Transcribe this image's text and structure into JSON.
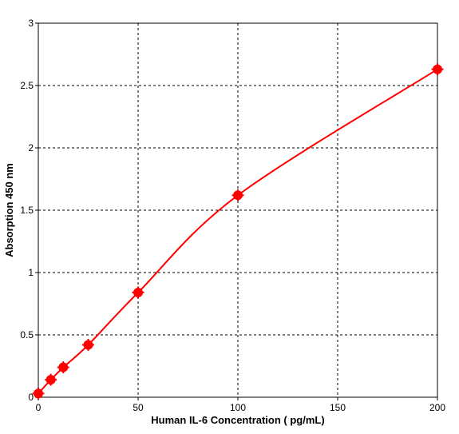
{
  "chart_data": {
    "type": "scatter",
    "title": "",
    "xlabel": "Human IL-6 Concentration ( pg/mL)",
    "ylabel": "Absorption 450 nm",
    "xlim": [
      0,
      200
    ],
    "ylim": [
      0,
      3
    ],
    "x_ticks": [
      "0",
      "50",
      "100",
      "150",
      "200"
    ],
    "y_ticks": [
      "0",
      "0.5",
      "1",
      "1.5",
      "2",
      "2.5",
      "3"
    ],
    "grid": true,
    "legend": "none",
    "series": [
      {
        "x": [
          0,
          6.25,
          12.5,
          25,
          50,
          100,
          200
        ],
        "y": [
          0.03,
          0.14,
          0.24,
          0.42,
          0.84,
          1.62,
          2.63
        ],
        "color": "#ff0000",
        "fit_line": true
      }
    ]
  }
}
